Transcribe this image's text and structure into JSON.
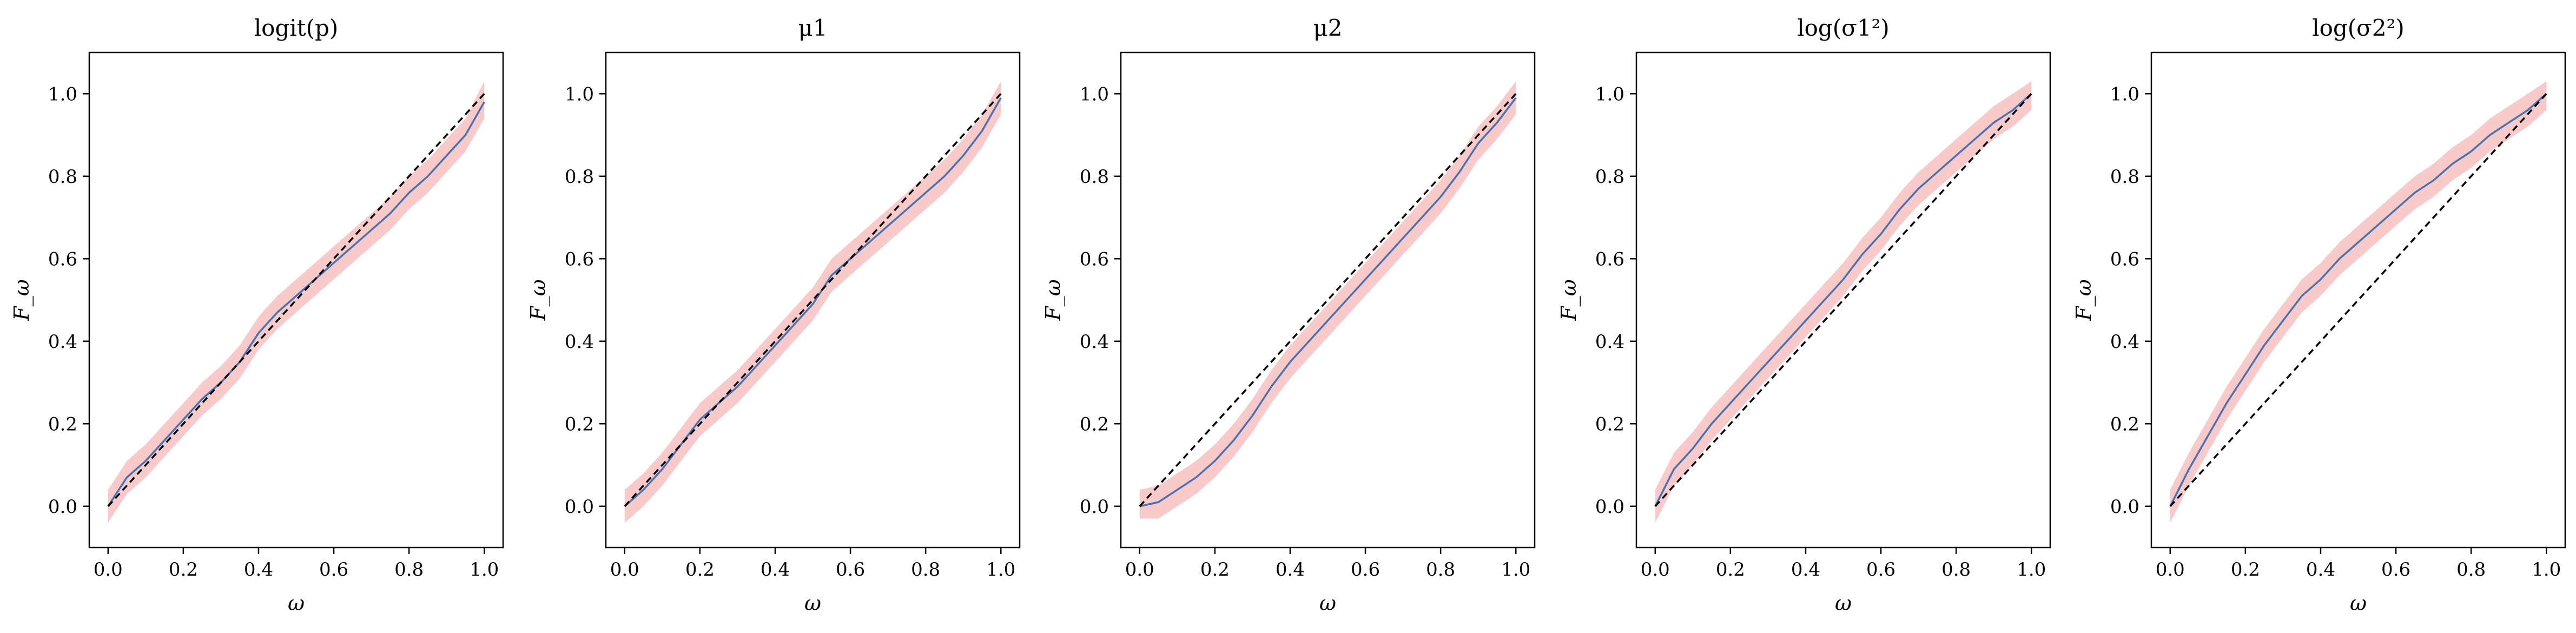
{
  "colors": {
    "band": "#f4a6a6",
    "line": "#4a72b0",
    "reference": "#000000",
    "frame": "#000000"
  },
  "chart_data": [
    {
      "type": "line",
      "title": "logit(p)",
      "xlabel": "ω",
      "ylabel": "F_ω",
      "xlim": [
        -0.05,
        1.05
      ],
      "ylim": [
        -0.1,
        1.1
      ],
      "xticks": [
        "0.0",
        "0.2",
        "0.4",
        "0.6",
        "0.8",
        "1.0"
      ],
      "yticks": [
        "0.0",
        "0.2",
        "0.4",
        "0.6",
        "0.8",
        "1.0"
      ],
      "grid": false,
      "x": [
        0,
        0.05,
        0.1,
        0.15,
        0.2,
        0.25,
        0.3,
        0.35,
        0.4,
        0.45,
        0.5,
        0.55,
        0.6,
        0.65,
        0.7,
        0.75,
        0.8,
        0.85,
        0.9,
        0.95,
        1.0
      ],
      "series": [
        {
          "role": "ecdf",
          "values": [
            0.0,
            0.07,
            0.11,
            0.16,
            0.21,
            0.26,
            0.3,
            0.35,
            0.42,
            0.47,
            0.51,
            0.55,
            0.59,
            0.63,
            0.67,
            0.71,
            0.76,
            0.8,
            0.85,
            0.9,
            0.98
          ]
        },
        {
          "role": "band_lower",
          "values": [
            -0.04,
            0.03,
            0.07,
            0.12,
            0.17,
            0.22,
            0.26,
            0.31,
            0.38,
            0.43,
            0.47,
            0.51,
            0.55,
            0.59,
            0.63,
            0.67,
            0.72,
            0.76,
            0.81,
            0.86,
            0.94
          ]
        },
        {
          "role": "band_upper",
          "values": [
            0.04,
            0.11,
            0.15,
            0.2,
            0.25,
            0.3,
            0.34,
            0.39,
            0.46,
            0.51,
            0.55,
            0.59,
            0.63,
            0.67,
            0.71,
            0.75,
            0.8,
            0.84,
            0.89,
            0.94,
            1.03
          ]
        },
        {
          "role": "reference",
          "values": [
            0.0,
            0.05,
            0.1,
            0.15,
            0.2,
            0.25,
            0.3,
            0.35,
            0.4,
            0.45,
            0.5,
            0.55,
            0.6,
            0.65,
            0.7,
            0.75,
            0.8,
            0.85,
            0.9,
            0.95,
            1.0
          ]
        }
      ]
    },
    {
      "type": "line",
      "title": "μ1",
      "xlabel": "ω",
      "ylabel": "F_ω",
      "xlim": [
        -0.05,
        1.05
      ],
      "ylim": [
        -0.1,
        1.1
      ],
      "xticks": [
        "0.0",
        "0.2",
        "0.4",
        "0.6",
        "0.8",
        "1.0"
      ],
      "yticks": [
        "0.0",
        "0.2",
        "0.4",
        "0.6",
        "0.8",
        "1.0"
      ],
      "grid": false,
      "x": [
        0,
        0.05,
        0.1,
        0.15,
        0.2,
        0.25,
        0.3,
        0.35,
        0.4,
        0.45,
        0.5,
        0.55,
        0.6,
        0.65,
        0.7,
        0.75,
        0.8,
        0.85,
        0.9,
        0.95,
        1.0
      ],
      "series": [
        {
          "role": "ecdf",
          "values": [
            0.0,
            0.04,
            0.09,
            0.15,
            0.21,
            0.25,
            0.29,
            0.34,
            0.39,
            0.44,
            0.49,
            0.56,
            0.6,
            0.64,
            0.68,
            0.72,
            0.76,
            0.8,
            0.85,
            0.91,
            0.99
          ]
        },
        {
          "role": "band_lower",
          "values": [
            -0.04,
            0.0,
            0.05,
            0.11,
            0.17,
            0.21,
            0.25,
            0.3,
            0.35,
            0.4,
            0.45,
            0.52,
            0.56,
            0.6,
            0.64,
            0.68,
            0.72,
            0.76,
            0.81,
            0.87,
            0.95
          ]
        },
        {
          "role": "band_upper",
          "values": [
            0.04,
            0.08,
            0.13,
            0.19,
            0.25,
            0.29,
            0.33,
            0.38,
            0.43,
            0.48,
            0.53,
            0.6,
            0.64,
            0.68,
            0.72,
            0.76,
            0.8,
            0.84,
            0.89,
            0.95,
            1.03
          ]
        },
        {
          "role": "reference",
          "values": [
            0.0,
            0.05,
            0.1,
            0.15,
            0.2,
            0.25,
            0.3,
            0.35,
            0.4,
            0.45,
            0.5,
            0.55,
            0.6,
            0.65,
            0.7,
            0.75,
            0.8,
            0.85,
            0.9,
            0.95,
            1.0
          ]
        }
      ]
    },
    {
      "type": "line",
      "title": "μ2",
      "xlabel": "ω",
      "ylabel": "F_ω",
      "xlim": [
        -0.05,
        1.05
      ],
      "ylim": [
        -0.1,
        1.1
      ],
      "xticks": [
        "0.0",
        "0.2",
        "0.4",
        "0.6",
        "0.8",
        "1.0"
      ],
      "yticks": [
        "0.0",
        "0.2",
        "0.4",
        "0.6",
        "0.8",
        "1.0"
      ],
      "grid": false,
      "x": [
        0,
        0.05,
        0.1,
        0.15,
        0.2,
        0.25,
        0.3,
        0.35,
        0.4,
        0.45,
        0.5,
        0.55,
        0.6,
        0.65,
        0.7,
        0.75,
        0.8,
        0.85,
        0.9,
        0.95,
        1.0
      ],
      "series": [
        {
          "role": "ecdf",
          "values": [
            0.0,
            0.01,
            0.04,
            0.07,
            0.11,
            0.16,
            0.22,
            0.29,
            0.35,
            0.4,
            0.45,
            0.5,
            0.55,
            0.6,
            0.65,
            0.7,
            0.75,
            0.81,
            0.88,
            0.93,
            0.99
          ]
        },
        {
          "role": "band_lower",
          "values": [
            -0.03,
            -0.03,
            0.0,
            0.03,
            0.07,
            0.12,
            0.18,
            0.25,
            0.31,
            0.36,
            0.41,
            0.46,
            0.51,
            0.56,
            0.61,
            0.66,
            0.71,
            0.77,
            0.84,
            0.89,
            0.95
          ]
        },
        {
          "role": "band_upper",
          "values": [
            0.04,
            0.05,
            0.08,
            0.11,
            0.15,
            0.2,
            0.26,
            0.33,
            0.39,
            0.44,
            0.49,
            0.54,
            0.59,
            0.64,
            0.69,
            0.74,
            0.79,
            0.85,
            0.92,
            0.97,
            1.03
          ]
        },
        {
          "role": "reference",
          "values": [
            0.0,
            0.05,
            0.1,
            0.15,
            0.2,
            0.25,
            0.3,
            0.35,
            0.4,
            0.45,
            0.5,
            0.55,
            0.6,
            0.65,
            0.7,
            0.75,
            0.8,
            0.85,
            0.9,
            0.95,
            1.0
          ]
        }
      ]
    },
    {
      "type": "line",
      "title": "log(σ1²)",
      "xlabel": "ω",
      "ylabel": "F_ω",
      "xlim": [
        -0.05,
        1.05
      ],
      "ylim": [
        -0.1,
        1.1
      ],
      "xticks": [
        "0.0",
        "0.2",
        "0.4",
        "0.6",
        "0.8",
        "1.0"
      ],
      "yticks": [
        "0.0",
        "0.2",
        "0.4",
        "0.6",
        "0.8",
        "1.0"
      ],
      "grid": false,
      "x": [
        0,
        0.05,
        0.1,
        0.15,
        0.2,
        0.25,
        0.3,
        0.35,
        0.4,
        0.45,
        0.5,
        0.55,
        0.6,
        0.65,
        0.7,
        0.75,
        0.8,
        0.85,
        0.9,
        0.95,
        1.0
      ],
      "series": [
        {
          "role": "ecdf",
          "values": [
            0.0,
            0.09,
            0.14,
            0.2,
            0.25,
            0.3,
            0.35,
            0.4,
            0.45,
            0.5,
            0.55,
            0.61,
            0.66,
            0.72,
            0.77,
            0.81,
            0.85,
            0.89,
            0.93,
            0.96,
            1.0
          ]
        },
        {
          "role": "band_lower",
          "values": [
            -0.04,
            0.05,
            0.1,
            0.16,
            0.21,
            0.26,
            0.31,
            0.36,
            0.41,
            0.46,
            0.51,
            0.57,
            0.62,
            0.68,
            0.73,
            0.77,
            0.81,
            0.85,
            0.89,
            0.92,
            0.96
          ]
        },
        {
          "role": "band_upper",
          "values": [
            0.04,
            0.13,
            0.18,
            0.24,
            0.29,
            0.34,
            0.39,
            0.44,
            0.49,
            0.54,
            0.59,
            0.65,
            0.7,
            0.76,
            0.81,
            0.85,
            0.89,
            0.93,
            0.97,
            1.0,
            1.03
          ]
        },
        {
          "role": "reference",
          "values": [
            0.0,
            0.05,
            0.1,
            0.15,
            0.2,
            0.25,
            0.3,
            0.35,
            0.4,
            0.45,
            0.5,
            0.55,
            0.6,
            0.65,
            0.7,
            0.75,
            0.8,
            0.85,
            0.9,
            0.95,
            1.0
          ]
        }
      ]
    },
    {
      "type": "line",
      "title": "log(σ2²)",
      "xlabel": "ω",
      "ylabel": "F_ω",
      "xlim": [
        -0.05,
        1.05
      ],
      "ylim": [
        -0.1,
        1.1
      ],
      "xticks": [
        "0.0",
        "0.2",
        "0.4",
        "0.6",
        "0.8",
        "1.0"
      ],
      "yticks": [
        "0.0",
        "0.2",
        "0.4",
        "0.6",
        "0.8",
        "1.0"
      ],
      "grid": false,
      "x": [
        0,
        0.05,
        0.1,
        0.15,
        0.2,
        0.25,
        0.3,
        0.35,
        0.4,
        0.45,
        0.5,
        0.55,
        0.6,
        0.65,
        0.7,
        0.75,
        0.8,
        0.85,
        0.9,
        0.95,
        1.0
      ],
      "series": [
        {
          "role": "ecdf",
          "values": [
            0.0,
            0.09,
            0.17,
            0.25,
            0.32,
            0.39,
            0.45,
            0.51,
            0.55,
            0.6,
            0.64,
            0.68,
            0.72,
            0.76,
            0.79,
            0.83,
            0.86,
            0.9,
            0.93,
            0.96,
            1.0
          ]
        },
        {
          "role": "band_lower",
          "values": [
            -0.04,
            0.05,
            0.13,
            0.21,
            0.28,
            0.35,
            0.41,
            0.47,
            0.51,
            0.56,
            0.6,
            0.64,
            0.68,
            0.72,
            0.75,
            0.79,
            0.82,
            0.86,
            0.89,
            0.92,
            0.96
          ]
        },
        {
          "role": "band_upper",
          "values": [
            0.04,
            0.13,
            0.21,
            0.29,
            0.36,
            0.43,
            0.49,
            0.55,
            0.59,
            0.64,
            0.68,
            0.72,
            0.76,
            0.8,
            0.83,
            0.87,
            0.9,
            0.94,
            0.97,
            1.0,
            1.03
          ]
        },
        {
          "role": "reference",
          "values": [
            0.0,
            0.05,
            0.1,
            0.15,
            0.2,
            0.25,
            0.3,
            0.35,
            0.4,
            0.45,
            0.5,
            0.55,
            0.6,
            0.65,
            0.7,
            0.75,
            0.8,
            0.85,
            0.9,
            0.95,
            1.0
          ]
        }
      ]
    }
  ]
}
